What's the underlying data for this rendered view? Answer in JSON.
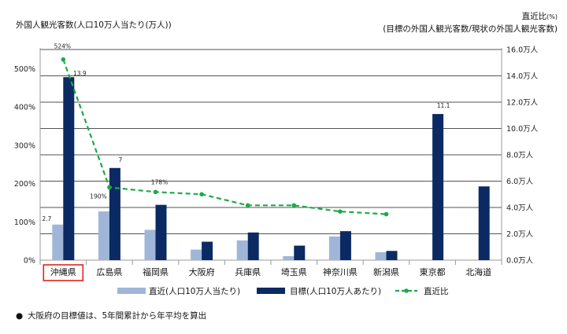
{
  "chart_data": {
    "type": "bar",
    "left_title": "外国人観光客数(人口10万人当たり(万人))",
    "right_title_line1": "直近比",
    "right_title_unit": "(%)",
    "right_title_line2": "(目標の外国人観光客数/現状の外国人観光客数)",
    "categories": [
      "沖縄県",
      "広島県",
      "福岡県",
      "大阪府",
      "兵庫県",
      "埼玉県",
      "神奈川県",
      "新潟県",
      "東京都",
      "北海道"
    ],
    "highlighted_category": "沖縄県",
    "series": [
      {
        "name": "直近(人口10万人当たり)",
        "kind": "bar",
        "axis": "right",
        "color": "#9fb6d9",
        "values": [
          2.7,
          3.7,
          2.3,
          0.8,
          1.5,
          0.3,
          1.8,
          0.6,
          null,
          null
        ]
      },
      {
        "name": "目標(人口10万人あたり)",
        "kind": "bar",
        "axis": "right",
        "color": "#0b2a63",
        "values": [
          13.9,
          7.0,
          4.2,
          1.4,
          2.1,
          1.1,
          2.2,
          0.7,
          11.1,
          5.6
        ]
      },
      {
        "name": "直近比",
        "kind": "line",
        "axis": "left",
        "color": "#1fa94a",
        "values": [
          524,
          190,
          178,
          172,
          143,
          143,
          127,
          120,
          null,
          null
        ]
      }
    ],
    "left_axis": {
      "ylim": [
        0,
        550
      ],
      "ticks": [
        0,
        100,
        200,
        300,
        400,
        500
      ],
      "tick_suffix": "%"
    },
    "right_axis": {
      "ylim": [
        0,
        16
      ],
      "ticks": [
        0,
        2,
        4,
        6,
        8,
        10,
        12,
        14,
        16
      ],
      "tick_suffix": "万人"
    },
    "data_labels": [
      {
        "text": "524%",
        "category": 0,
        "series": 2
      },
      {
        "text": "13.9",
        "category": 0,
        "series": 1
      },
      {
        "text": "2.7",
        "category": 0,
        "series": 0
      },
      {
        "text": "7",
        "category": 1,
        "series": 1
      },
      {
        "text": "190%",
        "category": 1,
        "series": 2
      },
      {
        "text": "178%",
        "category": 2,
        "series": 2
      },
      {
        "text": "11.1",
        "category": 8,
        "series": 1
      }
    ],
    "grid": true,
    "legend_position": "bottom"
  },
  "footnote": "大阪府の目標値は、5年間累計から年平均を算出",
  "footnote_bullet": "●"
}
